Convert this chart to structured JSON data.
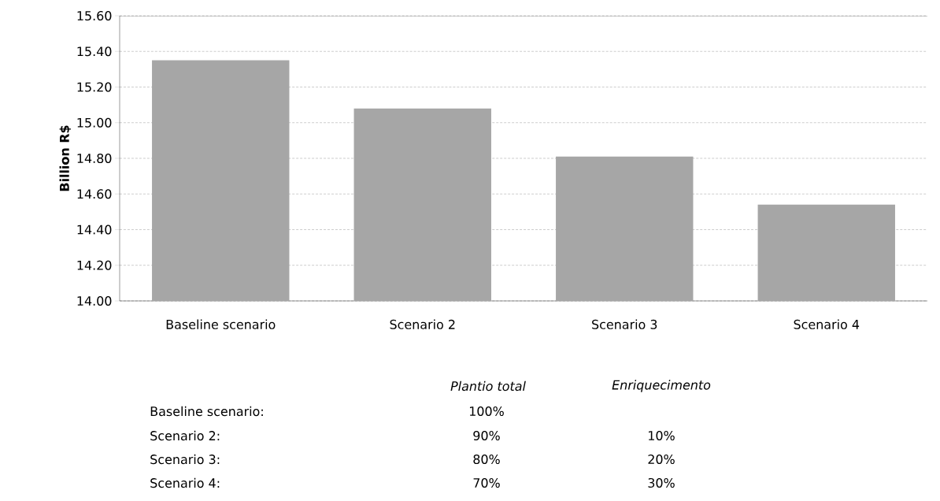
{
  "chart_data": {
    "type": "bar",
    "ylabel": "Billion R$",
    "categories": [
      "Baseline scenario",
      "Scenario 2",
      "Scenario 3",
      "Scenario 4"
    ],
    "values": [
      15.35,
      15.08,
      14.81,
      14.54
    ],
    "color": "#a6a6a6",
    "ylim": [
      14.0,
      15.6
    ],
    "yticks": [
      {
        "value": 14.0,
        "label": "14.00"
      },
      {
        "value": 14.2,
        "label": "14.20"
      },
      {
        "value": 14.4,
        "label": "14.40"
      },
      {
        "value": 14.6,
        "label": "14.60"
      },
      {
        "value": 14.8,
        "label": "14.80"
      },
      {
        "value": 15.0,
        "label": "15.00"
      },
      {
        "value": 15.2,
        "label": "15.20"
      },
      {
        "value": 15.4,
        "label": "15.40"
      },
      {
        "value": 15.6,
        "label": "15.60"
      }
    ],
    "grid": "y",
    "annotations": [
      "*Plantio total*",
      "*Enriquecimento*",
      "Baseline scenario:",
      "Scenario 2:",
      "Scenario 3:",
      "Scenario 4:",
      "100%",
      "90%",
      "80%",
      "70%",
      "10%",
      "20%",
      "30%"
    ]
  }
}
